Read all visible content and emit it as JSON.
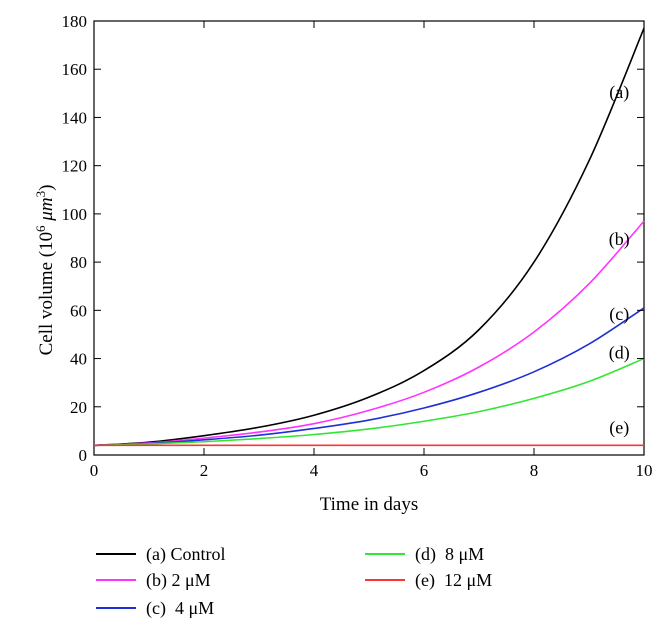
{
  "chart_data": {
    "type": "line",
    "title": "",
    "xlabel": "Time in days",
    "ylabel_main": "Cell volume (10",
    "ylabel_exp1": "6",
    "ylabel_unit": " μm",
    "ylabel_exp2": "3",
    "ylabel_close": ")",
    "xlim": [
      0,
      10
    ],
    "ylim": [
      0,
      180
    ],
    "xticks": [
      0,
      2,
      4,
      6,
      8,
      10
    ],
    "yticks": [
      0,
      20,
      40,
      60,
      80,
      100,
      120,
      140,
      160,
      180
    ],
    "grid": false,
    "legend_position": "bottom",
    "x": [
      0,
      1,
      2,
      3,
      4,
      5,
      6,
      7,
      8,
      9,
      10
    ],
    "series": [
      {
        "name": "(a) Control",
        "tag": "(a)",
        "color": "#000000",
        "values": [
          4,
          5.3,
          8,
          11.5,
          16.5,
          24,
          35,
          52,
          80,
          122,
          177
        ]
      },
      {
        "name": "(b) 2 μM",
        "tag": "(b)",
        "color": "#ff33ff",
        "values": [
          4,
          5,
          7,
          9.5,
          13,
          18.5,
          26,
          36.5,
          51,
          71,
          97
        ]
      },
      {
        "name": "(c)  4 μM",
        "tag": "(c)",
        "color": "#1f2fd6",
        "values": [
          4,
          4.8,
          6.3,
          8.2,
          11,
          14.5,
          19.5,
          26,
          34.5,
          46,
          61
        ]
      },
      {
        "name": "(d)  8 μM",
        "tag": "(d)",
        "color": "#33e633",
        "values": [
          4,
          4.6,
          5.5,
          6.8,
          8.5,
          10.8,
          14,
          18,
          23.5,
          30.5,
          40
        ]
      },
      {
        "name": "(e)  12 μM",
        "tag": "(e)",
        "color": "#ff3333",
        "values": [
          4,
          4,
          4,
          4,
          4,
          4,
          4,
          4,
          4,
          4,
          4
        ]
      }
    ]
  }
}
